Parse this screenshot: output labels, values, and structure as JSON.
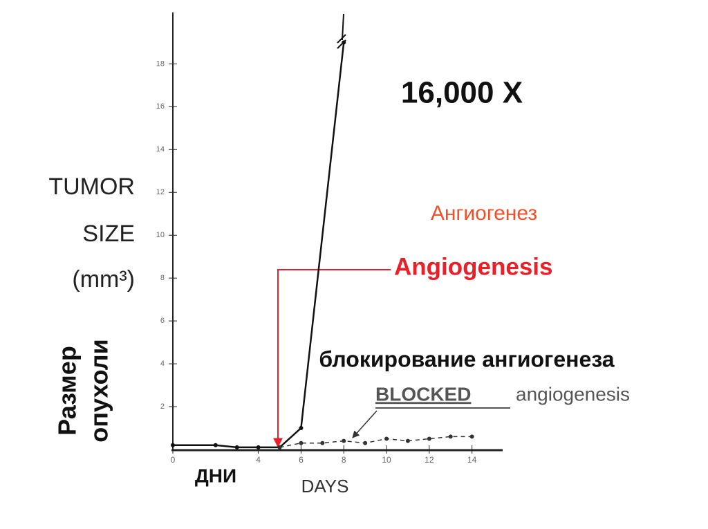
{
  "chart_data": {
    "type": "line",
    "ylabel": [
      "TUMOR",
      "SIZE",
      "(mm³)"
    ],
    "ylabel_ru": [
      "Размер",
      "опухоли"
    ],
    "xlabel_ru": "ДНИ",
    "xlabel": "DAYS",
    "xlim": [
      0,
      15.5
    ],
    "ylim": [
      0,
      20.4
    ],
    "xticks": [
      0,
      4,
      6,
      8,
      10,
      12,
      14
    ],
    "yticks": [
      2,
      4,
      6,
      8,
      10,
      12,
      14,
      16,
      18
    ],
    "series": [
      {
        "color": "#111111",
        "style": "solid",
        "x": [
          0,
          2,
          3,
          4,
          5,
          6,
          8
        ],
        "values": [
          0.2,
          0.2,
          0.1,
          0.1,
          0.1,
          1.0,
          19
        ]
      },
      {
        "color": "#333333",
        "style": "dashed",
        "x": [
          5,
          6,
          7,
          8,
          9,
          10,
          11,
          12,
          13,
          14
        ],
        "values": [
          0.1,
          0.3,
          0.3,
          0.4,
          0.3,
          0.5,
          0.4,
          0.5,
          0.6,
          0.6
        ]
      }
    ],
    "annotations": {
      "growth": "16,000 X",
      "angio_ru": "Ангиогенез",
      "angio": "Angiogenesis",
      "blocked_ru": "блокирование ангиогенеза",
      "blocked": "BLOCKED",
      "blocked_rest": "angiogenesis"
    }
  }
}
